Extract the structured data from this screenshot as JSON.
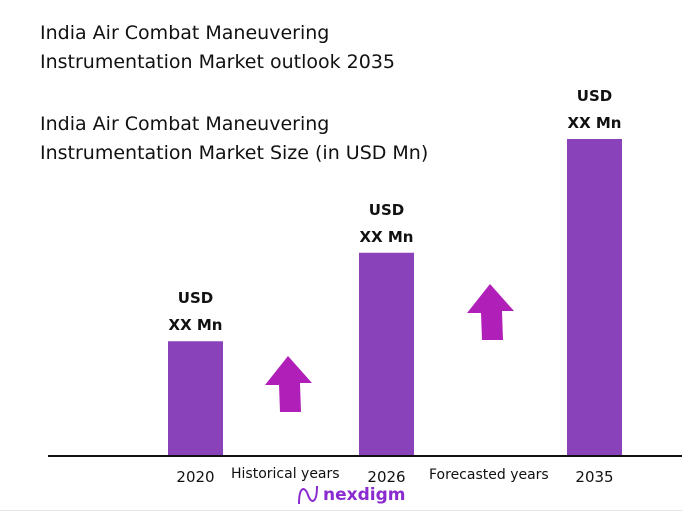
{
  "title": "India Air Combat Maneuvering Instrumentation Market outlook 2035",
  "title_lines": [
    "India Air Combat Maneuvering",
    "Instrumentation Market outlook 2035"
  ],
  "subtitle_lines": [
    "India Air Combat Maneuvering",
    "Instrumentation Market Size (in USD Mn)"
  ],
  "colors": {
    "bar": "#8a42bb",
    "arrow": "#b020b8",
    "logo": "#8a2bd0"
  },
  "chart_data": {
    "type": "bar",
    "categories": [
      "2020",
      "2026",
      "2035"
    ],
    "values_relative": [
      0.36,
      0.64,
      1.0
    ],
    "data_labels": [
      [
        "USD",
        "XX Mn"
      ],
      [
        "USD",
        "XX Mn"
      ],
      [
        "USD",
        "XX Mn"
      ]
    ],
    "annotations": [
      "Historical years",
      "Forecasted years"
    ],
    "grid": false,
    "icons": [
      "up-arrow-icon",
      "up-arrow-icon"
    ]
  },
  "logo": {
    "text": "nexdigm"
  }
}
